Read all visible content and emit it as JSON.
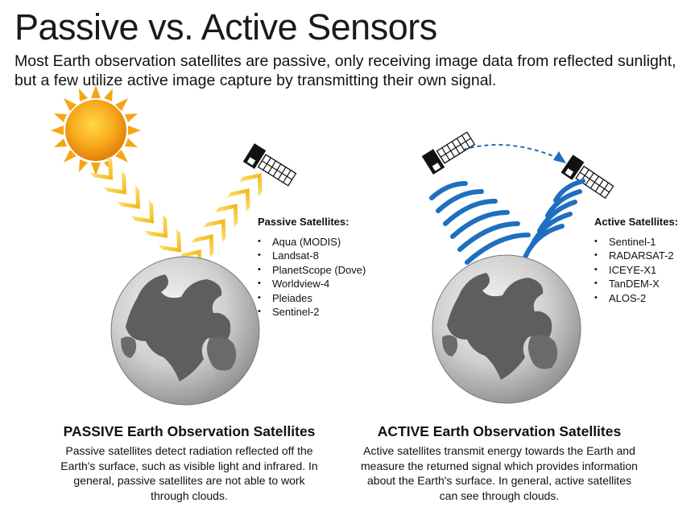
{
  "header": {
    "title": "Passive vs. Active Sensors",
    "subtitle": "Most Earth observation satellites are passive, only receiving image data from reflected sunlight, but a few utilize active image capture by transmitting their own signal."
  },
  "passive": {
    "list_heading": "Passive Satellites:",
    "satellites": [
      "Aqua (MODIS)",
      "Landsat-8",
      "PlanetScope (Dove)",
      "Worldview-4",
      "Pleiades",
      "Sentinel-2"
    ],
    "caption_title": "PASSIVE Earth Observation Satellites",
    "caption_body": "Passive satellites detect radiation reflected off the Earth's surface, such as visible light and infrared. In general, passive satellites are not able to work through clouds."
  },
  "active": {
    "list_heading": "Active Satellites:",
    "satellites": [
      "Sentinel-1",
      "RADARSAT-2",
      "ICEYE-X1",
      "TanDEM-X",
      "ALOS-2"
    ],
    "caption_title": "ACTIVE Earth Observation Satellites",
    "caption_body": "Active satellites transmit energy towards the Earth and measure the returned signal which provides information about the Earth's surface. In general, active satellites can see through clouds."
  },
  "colors": {
    "sun": "#f5a614",
    "chevron": "#f7c52a",
    "signal": "#1f6fc0",
    "globe": "#9a9a9a",
    "land": "#5e5e5e"
  },
  "icons": [
    "sun-icon",
    "satellite-icon",
    "globe-icon",
    "chevron-beam",
    "signal-wave",
    "dashed-arrow"
  ]
}
